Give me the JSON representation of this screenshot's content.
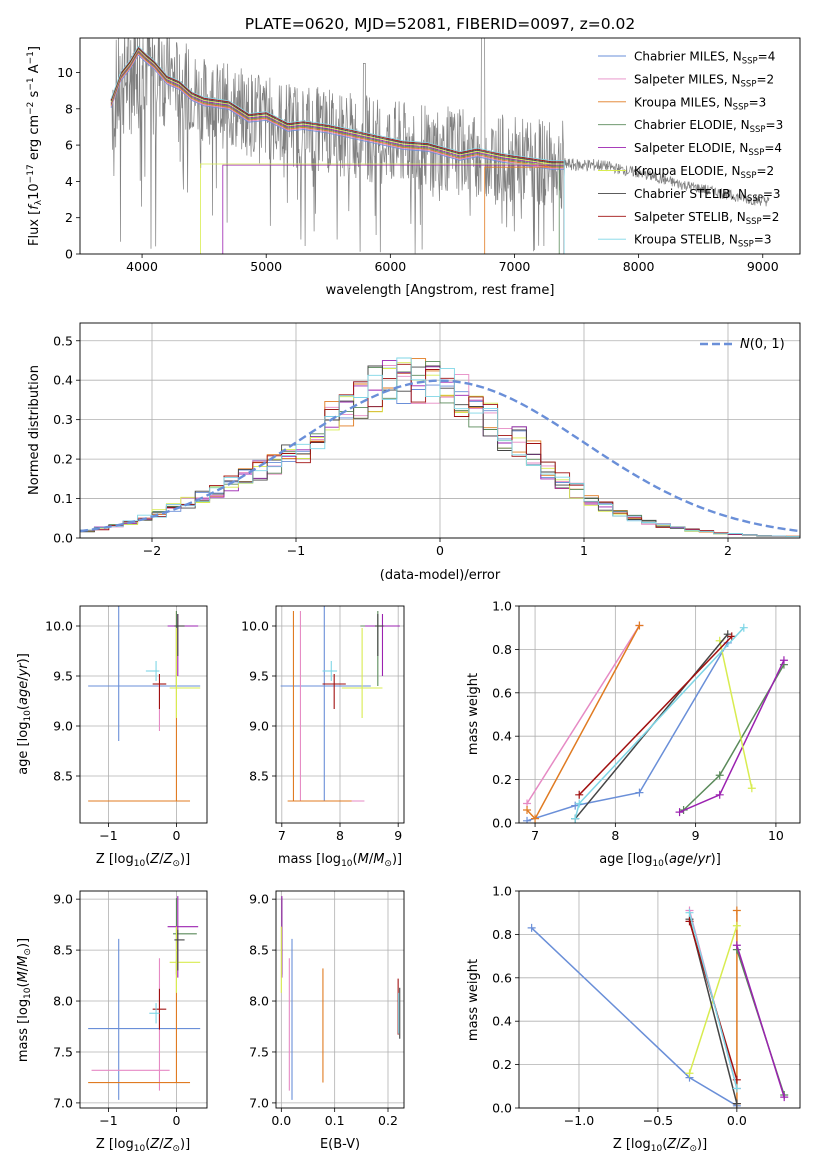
{
  "figure_title": "PLATE=0620, MJD=52081, FIBERID=0097, z=0.02",
  "colors": {
    "Chabrier MILES": "#6a8fd8",
    "Salpeter MILES": "#e68ac4",
    "Kroupa MILES": "#e07b22",
    "Chabrier ELODIE": "#5a8a5a",
    "Salpeter ELODIE": "#9b22b0",
    "Kroupa ELODIE": "#d8ec50",
    "Chabrier STELIB": "#444444",
    "Salpeter STELIB": "#a01010",
    "Kroupa STELIB": "#7fd6e6",
    "spectrum": "#808080",
    "gauss": "#6a8fd8"
  },
  "chart_data": [
    {
      "id": "spectrum",
      "type": "line",
      "xlabel": "wavelength [Angstrom, rest frame]",
      "ylabel": "Flux [f_λ10^-17 erg cm^-2 s^-1 A^-1]",
      "xlim": [
        3500,
        9300
      ],
      "ylim": [
        0,
        11.9
      ],
      "xticks": [
        4000,
        5000,
        6000,
        7000,
        8000,
        9000
      ],
      "yticks": [
        0,
        2,
        4,
        6,
        8,
        10
      ],
      "grid": false,
      "legend_position": "top-right",
      "legend": [
        {
          "name": "Chabrier MILES",
          "nssp": "4"
        },
        {
          "name": "Salpeter MILES",
          "nssp": "2"
        },
        {
          "name": "Kroupa MILES",
          "nssp": "3"
        },
        {
          "name": "Chabrier ELODIE",
          "nssp": "3"
        },
        {
          "name": "Salpeter ELODIE",
          "nssp": "4"
        },
        {
          "name": "Kroupa ELODIE",
          "nssp": "2"
        },
        {
          "name": "Chabrier STELIB",
          "nssp": "3"
        },
        {
          "name": "Salpeter STELIB",
          "nssp": "2"
        },
        {
          "name": "Kroupa STELIB",
          "nssp": "3"
        }
      ],
      "spectrum_envelope": {
        "x": [
          3750,
          3850,
          3950,
          4050,
          4150,
          4300,
          4500,
          4700,
          4900,
          5100,
          5300,
          5500,
          5700,
          5900,
          6100,
          6300,
          6500,
          6700,
          6900,
          7100,
          7300,
          7500,
          7700,
          7900,
          8100,
          8300,
          8500,
          8700,
          8900,
          9050
        ],
        "y": [
          8.3,
          9.5,
          10.8,
          10.6,
          10.2,
          9.5,
          8.5,
          8.1,
          7.7,
          7.3,
          7.0,
          6.8,
          6.5,
          6.3,
          6.0,
          5.9,
          5.7,
          5.5,
          5.3,
          5.1,
          5.0,
          4.9,
          4.9,
          4.6,
          4.3,
          3.9,
          3.6,
          3.3,
          3.0,
          2.9
        ]
      },
      "model_line": {
        "x": [
          3750,
          3830,
          3900,
          3970,
          4030,
          4100,
          4200,
          4300,
          4400,
          4500,
          4700,
          4860,
          5000,
          5175,
          5300,
          5500,
          5700,
          5900,
          6100,
          6300,
          6560,
          6700,
          6900,
          7100,
          7300,
          7400
        ],
        "y": [
          8.3,
          9.8,
          10.4,
          11.2,
          10.8,
          10.4,
          9.6,
          9.3,
          8.7,
          8.4,
          8.2,
          7.5,
          7.6,
          7.0,
          7.1,
          6.9,
          6.6,
          6.3,
          6.0,
          5.9,
          5.4,
          5.6,
          5.3,
          5.1,
          4.9,
          4.9
        ]
      }
    },
    {
      "id": "residual_histogram",
      "type": "histogram",
      "xlabel": "(data-model)/error",
      "ylabel": "Normed distribution",
      "xlim": [
        -2.5,
        2.5
      ],
      "ylim": [
        0,
        0.545
      ],
      "xticks": [
        -2,
        -1,
        0,
        1,
        2
      ],
      "yticks": [
        0.0,
        0.1,
        0.2,
        0.3,
        0.4,
        0.5
      ],
      "grid": true,
      "legend_position": "top-right",
      "gauss_label": "N(0,1)",
      "bin_width": 0.1,
      "bin_start": -2.5,
      "gauss_profile": [
        0.018,
        0.024,
        0.031,
        0.04,
        0.05,
        0.062,
        0.075,
        0.09,
        0.105,
        0.12,
        0.137,
        0.155,
        0.172,
        0.19,
        0.207,
        0.223,
        0.262,
        0.3,
        0.33,
        0.36,
        0.38,
        0.395,
        0.4,
        0.4,
        0.395,
        0.38,
        0.36,
        0.33,
        0.3,
        0.262,
        0.245,
        0.218,
        0.178,
        0.145,
        0.12,
        0.098,
        0.08,
        0.064,
        0.05,
        0.04,
        0.032,
        0.025,
        0.02,
        0.016,
        0.012,
        0.01,
        0.008,
        0.006,
        0.005,
        0.004
      ]
    },
    {
      "id": "z_vs_age",
      "type": "errorbar",
      "xlabel": "Z [log10(Z/Z⊙)]",
      "ylabel": "age  [log10(age/yr)]",
      "xlim": [
        -1.42,
        0.45
      ],
      "ylim": [
        8.03,
        10.2
      ],
      "xticks": [
        -1,
        0
      ],
      "yticks": [
        8.5,
        9.0,
        9.5,
        10.0
      ],
      "grid": true,
      "points": [
        {
          "series": "Chabrier MILES",
          "x": -0.85,
          "y": 9.4,
          "xerr": [
            0.45,
            1.2
          ],
          "yerr": [
            0.55,
            0.8
          ]
        },
        {
          "series": "Salpeter MILES",
          "x": -0.25,
          "y": 9.4,
          "xerr": [
            0.02,
            0.0
          ],
          "yerr": [
            0.45,
            0.0
          ]
        },
        {
          "series": "Kroupa MILES",
          "x": 0.0,
          "y": 8.25,
          "xerr": [
            1.3,
            0.2
          ],
          "yerr": [
            0.0,
            1.9
          ]
        },
        {
          "series": "Chabrier ELODIE",
          "x": 0.0,
          "y": 10.0,
          "xerr": [
            0.05,
            0.3
          ],
          "yerr": [
            0.6,
            0.15
          ]
        },
        {
          "series": "Salpeter ELODIE",
          "x": 0.02,
          "y": 10.0,
          "xerr": [
            0.15,
            0.3
          ],
          "yerr": [
            0.5,
            0.12
          ]
        },
        {
          "series": "Kroupa ELODIE",
          "x": 0.0,
          "y": 9.38,
          "xerr": [
            0.1,
            0.35
          ],
          "yerr": [
            0.3,
            0.6
          ]
        },
        {
          "series": "Chabrier STELIB",
          "x": 0.02,
          "y": 10.0,
          "xerr": [
            0.05,
            0.1
          ],
          "yerr": [
            0.3,
            0.12
          ]
        },
        {
          "series": "Salpeter STELIB",
          "x": -0.25,
          "y": 9.42,
          "xerr": [
            0.1,
            0.1
          ],
          "yerr": [
            0.25,
            0.1
          ]
        },
        {
          "series": "Kroupa STELIB",
          "x": -0.3,
          "y": 9.55,
          "xerr": [
            0.15,
            0.05
          ],
          "yerr": [
            0.1,
            0.1
          ]
        }
      ]
    },
    {
      "id": "mass_vs_age",
      "type": "errorbar",
      "xlabel": "mass [log10(M/M⊙)]",
      "ylabel": "",
      "xlim": [
        6.9,
        9.1
      ],
      "ylim": [
        8.03,
        10.2
      ],
      "xticks": [
        7,
        8,
        9
      ],
      "yticks": [
        8.5,
        9.0,
        9.5,
        10.0
      ],
      "grid": true,
      "points": [
        {
          "series": "Chabrier MILES",
          "x": 7.73,
          "y": 9.4,
          "xerr": [
            0.75,
            0.8
          ],
          "yerr": [
            1.15,
            0.8
          ]
        },
        {
          "series": "Salpeter MILES",
          "x": 7.32,
          "y": 8.25,
          "xerr": [
            0.1,
            1.1
          ],
          "yerr": [
            0.0,
            1.9
          ]
        },
        {
          "series": "Kroupa MILES",
          "x": 7.2,
          "y": 8.25,
          "xerr": [
            0.1,
            1.0
          ],
          "yerr": [
            0.0,
            1.9
          ]
        },
        {
          "series": "Chabrier ELODIE",
          "x": 8.65,
          "y": 10.0,
          "xerr": [
            0.3,
            0.35
          ],
          "yerr": [
            0.6,
            0.15
          ]
        },
        {
          "series": "Salpeter ELODIE",
          "x": 8.73,
          "y": 10.0,
          "xerr": [
            0.3,
            0.3
          ],
          "yerr": [
            0.5,
            0.12
          ]
        },
        {
          "series": "Kroupa ELODIE",
          "x": 8.38,
          "y": 9.38,
          "xerr": [
            0.35,
            0.35
          ],
          "yerr": [
            0.3,
            0.6
          ]
        },
        {
          "series": "Chabrier STELIB",
          "x": 8.65,
          "y": 10.0,
          "xerr": [
            0.05,
            0.1
          ],
          "yerr": [
            0.3,
            0.12
          ]
        },
        {
          "series": "Salpeter STELIB",
          "x": 7.9,
          "y": 9.42,
          "xerr": [
            0.2,
            0.2
          ],
          "yerr": [
            0.25,
            0.1
          ]
        },
        {
          "series": "Kroupa STELIB",
          "x": 7.85,
          "y": 9.55,
          "xerr": [
            0.15,
            0.1
          ],
          "yerr": [
            0.1,
            0.1
          ]
        }
      ]
    },
    {
      "id": "age_vs_weight",
      "type": "line",
      "xlabel": "age  [log10(age/yr)]",
      "ylabel": "mass weight",
      "xlim": [
        6.8,
        10.3
      ],
      "ylim": [
        0,
        1.0
      ],
      "xticks": [
        7,
        8,
        9,
        10
      ],
      "yticks": [
        0.0,
        0.2,
        0.4,
        0.6,
        0.8,
        1.0
      ],
      "grid": true,
      "series": [
        {
          "name": "Chabrier MILES",
          "x": [
            6.9,
            7.5,
            8.3,
            9.4
          ],
          "y": [
            0.01,
            0.08,
            0.14,
            0.83
          ]
        },
        {
          "name": "Salpeter MILES",
          "x": [
            6.9,
            8.3
          ],
          "y": [
            0.09,
            0.91
          ]
        },
        {
          "name": "Kroupa MILES",
          "x": [
            6.9,
            7.0,
            8.3
          ],
          "y": [
            0.06,
            0.02,
            0.91
          ]
        },
        {
          "name": "Chabrier ELODIE",
          "x": [
            8.85,
            9.3,
            10.1
          ],
          "y": [
            0.06,
            0.22,
            0.73
          ]
        },
        {
          "name": "Salpeter ELODIE",
          "x": [
            8.8,
            9.3,
            10.1
          ],
          "y": [
            0.05,
            0.13,
            0.75
          ]
        },
        {
          "name": "Kroupa ELODIE",
          "x": [
            9.3,
            9.7
          ],
          "y": [
            0.84,
            0.16
          ]
        },
        {
          "name": "Chabrier STELIB",
          "x": [
            7.5,
            9.4
          ],
          "y": [
            0.02,
            0.87
          ]
        },
        {
          "name": "Salpeter STELIB",
          "x": [
            7.55,
            9.45
          ],
          "y": [
            0.13,
            0.86
          ]
        },
        {
          "name": "Kroupa STELIB",
          "x": [
            7.5,
            7.55,
            9.6
          ],
          "y": [
            0.02,
            0.09,
            0.9
          ]
        }
      ]
    },
    {
      "id": "z_vs_mass",
      "type": "errorbar",
      "xlabel": "Z [log10(Z/Z⊙)]",
      "ylabel": "mass [log10(M/M⊙)]",
      "xlim": [
        -1.42,
        0.45
      ],
      "ylim": [
        6.95,
        9.08
      ],
      "xticks": [
        -1,
        0
      ],
      "yticks": [
        7.0,
        7.5,
        8.0,
        8.5,
        9.0
      ],
      "grid": true,
      "points": [
        {
          "series": "Chabrier MILES",
          "x": -0.85,
          "y": 7.73,
          "xerr": [
            0.45,
            1.2
          ],
          "yerr": [
            0.7,
            0.88
          ]
        },
        {
          "series": "Salpeter MILES",
          "x": -0.25,
          "y": 7.32,
          "xerr": [
            1.0,
            0.15
          ],
          "yerr": [
            0.2,
            1.1
          ]
        },
        {
          "series": "Kroupa MILES",
          "x": 0.0,
          "y": 7.2,
          "xerr": [
            1.3,
            0.2
          ],
          "yerr": [
            0.0,
            1.2
          ]
        },
        {
          "series": "Chabrier ELODIE",
          "x": 0.0,
          "y": 8.66,
          "xerr": [
            0.05,
            0.3
          ],
          "yerr": [
            0.4,
            0.35
          ]
        },
        {
          "series": "Salpeter ELODIE",
          "x": 0.02,
          "y": 8.73,
          "xerr": [
            0.15,
            0.3
          ],
          "yerr": [
            0.5,
            0.3
          ]
        },
        {
          "series": "Kroupa ELODIE",
          "x": 0.0,
          "y": 8.38,
          "xerr": [
            0.1,
            0.35
          ],
          "yerr": [
            0.3,
            0.35
          ]
        },
        {
          "series": "Chabrier STELIB",
          "x": 0.02,
          "y": 8.6,
          "xerr": [
            0.05,
            0.1
          ],
          "yerr": [
            0.3,
            0.1
          ]
        },
        {
          "series": "Salpeter STELIB",
          "x": -0.25,
          "y": 7.92,
          "xerr": [
            0.1,
            0.1
          ],
          "yerr": [
            0.2,
            0.2
          ]
        },
        {
          "series": "Kroupa STELIB",
          "x": -0.3,
          "y": 7.88,
          "xerr": [
            0.1,
            0.05
          ],
          "yerr": [
            0.1,
            0.1
          ]
        }
      ]
    },
    {
      "id": "ebv_vs_mass",
      "type": "errorbar",
      "xlabel": "E(B-V)",
      "ylabel": "",
      "xlim": [
        -0.01,
        0.23
      ],
      "ylim": [
        6.95,
        9.08
      ],
      "xticks": [
        0.0,
        0.1,
        0.2
      ],
      "xtick_labels": [
        "0.0",
        "0.1",
        "0.2"
      ],
      "yticks": [
        7.0,
        7.5,
        8.0,
        8.5,
        9.0
      ],
      "grid": true,
      "points": [
        {
          "series": "Chabrier MILES",
          "x": 0.02,
          "y": 7.73,
          "xerr": [
            0,
            0
          ],
          "yerr": [
            0.7,
            0.88
          ]
        },
        {
          "series": "Salpeter MILES",
          "x": 0.015,
          "y": 7.32,
          "xerr": [
            0,
            0
          ],
          "yerr": [
            0.2,
            1.1
          ]
        },
        {
          "series": "Kroupa MILES",
          "x": 0.078,
          "y": 7.76,
          "xerr": [
            0,
            0
          ],
          "yerr": [
            0.56,
            0.56
          ]
        },
        {
          "series": "Chabrier ELODIE",
          "x": 0.001,
          "y": 8.66,
          "xerr": [
            0,
            0
          ],
          "yerr": [
            0.4,
            0.35
          ]
        },
        {
          "series": "Salpeter ELODIE",
          "x": 0.001,
          "y": 8.73,
          "xerr": [
            0,
            0
          ],
          "yerr": [
            0.5,
            0.3
          ]
        },
        {
          "series": "Kroupa ELODIE",
          "x": 0.0,
          "y": 8.38,
          "xerr": [
            0,
            0
          ],
          "yerr": [
            0.3,
            0.35
          ]
        },
        {
          "series": "Chabrier STELIB",
          "x": 0.222,
          "y": 7.88,
          "xerr": [
            0,
            0
          ],
          "yerr": [
            0.25,
            0.25
          ]
        },
        {
          "series": "Salpeter STELIB",
          "x": 0.219,
          "y": 7.92,
          "xerr": [
            0,
            0
          ],
          "yerr": [
            0.25,
            0.3
          ]
        },
        {
          "series": "Kroupa STELIB",
          "x": 0.22,
          "y": 7.88,
          "xerr": [
            0,
            0
          ],
          "yerr": [
            0.2,
            0.2
          ]
        }
      ]
    },
    {
      "id": "z_vs_weight",
      "type": "line",
      "xlabel": "Z [log10(Z/Z⊙)]",
      "ylabel": "mass weight",
      "xlim": [
        -1.38,
        0.4
      ],
      "ylim": [
        0,
        1.0
      ],
      "xticks": [
        -1.0,
        -0.5,
        0.0
      ],
      "xtick_labels": [
        "−1.0",
        "−0.5",
        "0.0"
      ],
      "yticks": [
        0.0,
        0.2,
        0.4,
        0.6,
        0.8,
        1.0
      ],
      "grid": true,
      "series": [
        {
          "name": "Chabrier MILES",
          "x": [
            -1.3,
            -0.3,
            0.0
          ],
          "y": [
            0.83,
            0.14,
            0.01
          ]
        },
        {
          "name": "Salpeter MILES",
          "x": [
            -0.3,
            0.0
          ],
          "y": [
            0.91,
            0.09
          ]
        },
        {
          "name": "Kroupa MILES",
          "x": [
            0.0,
            0.0
          ],
          "y": [
            0.91,
            0.02
          ]
        },
        {
          "name": "Chabrier ELODIE",
          "x": [
            0.0,
            0.3
          ],
          "y": [
            0.73,
            0.06
          ]
        },
        {
          "name": "Salpeter ELODIE",
          "x": [
            0.0,
            0.3
          ],
          "y": [
            0.75,
            0.05
          ]
        },
        {
          "name": "Kroupa ELODIE",
          "x": [
            -0.3,
            0.0
          ],
          "y": [
            0.16,
            0.84
          ]
        },
        {
          "name": "Chabrier STELIB",
          "x": [
            -0.3,
            0.0
          ],
          "y": [
            0.87,
            0.02
          ]
        },
        {
          "name": "Salpeter STELIB",
          "x": [
            -0.3,
            0.0
          ],
          "y": [
            0.86,
            0.13
          ]
        },
        {
          "name": "Kroupa STELIB",
          "x": [
            -0.3,
            0.0
          ],
          "y": [
            0.9,
            0.09
          ]
        }
      ]
    }
  ]
}
